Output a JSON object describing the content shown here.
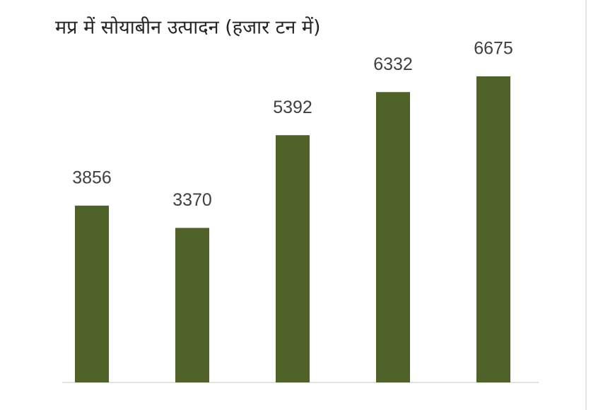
{
  "chart_data": {
    "type": "bar",
    "title": "मप्र में सोयाबीन उत्पादन (हजार टन में)",
    "categories": [
      null,
      null,
      null,
      null,
      null
    ],
    "values": [
      3856,
      3370,
      5392,
      6332,
      6675
    ],
    "color": "#4f6228"
  }
}
